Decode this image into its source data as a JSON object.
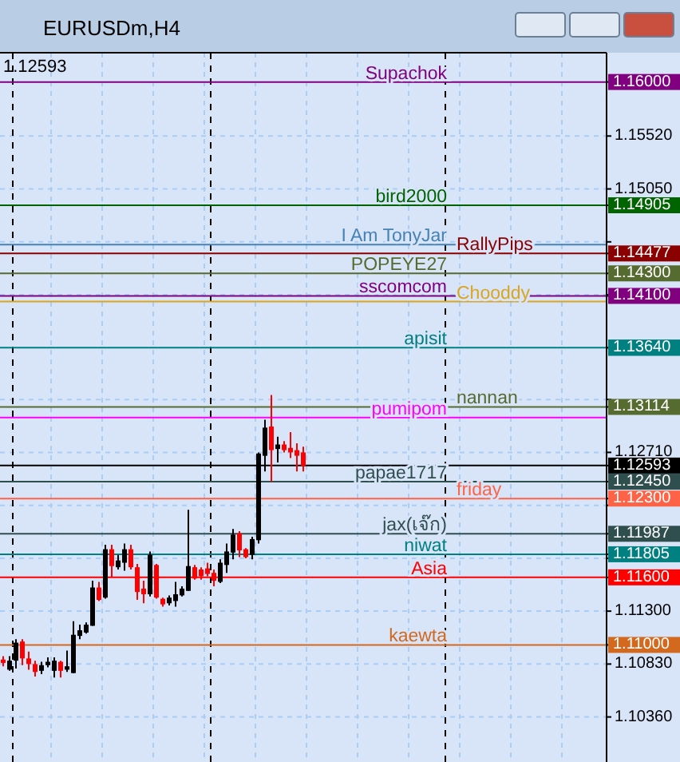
{
  "chart_data": {
    "type": "candlestick",
    "title": "EURUSDm,H4",
    "categories": [
      null,
      null,
      null,
      null,
      null,
      null,
      null,
      null,
      null,
      null,
      null,
      null,
      null,
      null,
      null,
      null,
      null,
      null,
      null,
      null,
      null,
      null,
      null,
      null,
      null,
      null,
      null,
      null,
      null,
      null,
      null,
      null,
      null,
      null,
      null,
      null,
      null,
      null,
      null,
      null,
      null,
      null,
      null,
      null,
      null,
      null,
      null,
      null,
      null,
      null,
      null,
      null,
      null,
      null,
      null,
      null,
      null,
      null,
      null,
      null,
      null,
      null,
      null,
      null,
      null,
      null,
      null,
      null,
      null,
      null,
      null,
      null,
      null,
      null,
      null,
      null,
      null,
      null,
      null,
      null,
      null,
      null,
      null,
      null,
      null,
      null,
      null,
      null,
      null,
      null,
      null,
      null,
      null,
      null,
      null
    ],
    "ohlc": [
      [
        1.1087,
        1.109,
        1.1081,
        1.1084
      ],
      [
        1.1078,
        1.109,
        1.1077,
        1.1086
      ],
      [
        1.1086,
        1.1105,
        1.1079,
        1.1102
      ],
      [
        1.1103,
        1.1105,
        1.1082,
        1.1088
      ],
      [
        1.1088,
        1.1094,
        1.1078,
        1.1083
      ],
      [
        1.1083,
        1.1086,
        1.1072,
        1.1076
      ],
      [
        1.1077,
        1.1085,
        1.1074,
        1.1082
      ],
      [
        1.1082,
        1.1089,
        1.108,
        1.1085
      ],
      [
        1.1077,
        1.1089,
        1.1071,
        1.1086
      ],
      [
        1.1085,
        1.1086,
        1.1071,
        1.1077
      ],
      [
        1.1078,
        1.1095,
        1.1076,
        1.1081
      ],
      [
        1.1075,
        1.1121,
        1.1075,
        1.1109
      ],
      [
        1.1108,
        1.1118,
        1.1105,
        1.1113
      ],
      [
        1.1111,
        1.112,
        1.111,
        1.1118
      ],
      [
        1.1117,
        1.1157,
        1.1117,
        1.1151
      ],
      [
        1.1151,
        1.1156,
        1.1139,
        1.114
      ],
      [
        1.1142,
        1.1189,
        1.1141,
        1.1185
      ],
      [
        1.1185,
        1.1189,
        1.116,
        1.117
      ],
      [
        1.1169,
        1.118,
        1.1167,
        1.1175
      ],
      [
        1.1173,
        1.119,
        1.1166,
        1.1185
      ],
      [
        1.1185,
        1.1189,
        1.1167,
        1.1169
      ],
      [
        1.1169,
        1.1172,
        1.114,
        1.1147
      ],
      [
        1.115,
        1.1157,
        1.1137,
        1.1145
      ],
      [
        1.1145,
        1.1183,
        1.1143,
        1.118
      ],
      [
        1.1171,
        1.1172,
        1.1141,
        1.1142
      ],
      [
        1.1141,
        1.1142,
        1.1134,
        1.1136
      ],
      [
        1.1137,
        1.1144,
        1.1135,
        1.1142
      ],
      [
        1.1139,
        1.1156,
        1.1134,
        1.1145
      ],
      [
        1.1144,
        1.1152,
        1.1143,
        1.115
      ],
      [
        1.1148,
        1.122,
        1.1148,
        1.117
      ],
      [
        1.1169,
        1.1171,
        1.1158,
        1.1159
      ],
      [
        1.1167,
        1.1169,
        1.1158,
        1.1161
      ],
      [
        1.1168,
        1.1173,
        1.1161,
        1.1163
      ],
      [
        1.1164,
        1.1167,
        1.1152,
        1.1157
      ],
      [
        1.1156,
        1.1176,
        1.1155,
        1.1173
      ],
      [
        1.1171,
        1.119,
        1.1164,
        1.1183
      ],
      [
        1.1182,
        1.1203,
        1.1176,
        1.1198
      ],
      [
        1.1199,
        1.1201,
        1.1178,
        1.1184
      ],
      [
        1.1185,
        1.1186,
        1.1177,
        1.1178
      ],
      [
        1.118,
        1.1196,
        1.1176,
        1.1194
      ],
      [
        1.1193,
        1.1271,
        1.119,
        1.127
      ],
      [
        1.1268,
        1.13,
        1.1254,
        1.1293
      ],
      [
        1.1294,
        1.1322,
        1.1245,
        1.1273
      ],
      [
        1.1274,
        1.1285,
        1.1262,
        1.1278
      ],
      [
        1.1278,
        1.1281,
        1.1271,
        1.1273
      ],
      [
        1.1275,
        1.1289,
        1.1266,
        1.1271
      ],
      [
        1.1273,
        1.1279,
        1.1254,
        1.1268
      ],
      [
        1.1271,
        1.1276,
        1.1254,
        1.1259
      ],
      null,
      null,
      null,
      null,
      null,
      null,
      null,
      null,
      null,
      null,
      null,
      null,
      null,
      null,
      null,
      null,
      null,
      null,
      null,
      null,
      null,
      null,
      null,
      null,
      null,
      null,
      null,
      null,
      null,
      null,
      null,
      null,
      null,
      null,
      null,
      null,
      null,
      null,
      null,
      null,
      null,
      null,
      null,
      null,
      null,
      null,
      null
    ],
    "colors": [
      "#ff0000",
      "#000000",
      "#000000",
      "#ff0000",
      "#ff0000",
      "#ff0000",
      "#000000",
      "#000000",
      "#000000",
      "#ff0000",
      "#000000",
      "#000000",
      "#000000",
      "#000000",
      "#000000",
      "#ff0000",
      "#000000",
      "#ff0000",
      "#000000",
      "#000000",
      "#ff0000",
      "#ff0000",
      "#ff0000",
      "#000000",
      "#ff0000",
      "#ff0000",
      "#000000",
      "#000000",
      "#000000",
      "#000000",
      "#ff0000",
      "#ff0000",
      "#ff0000",
      "#ff0000",
      "#000000",
      "#000000",
      "#000000",
      "#ff0000",
      "#ff0000",
      "#000000",
      "#000000",
      "#000000",
      "#ff0000",
      "#000000",
      "#ff0000",
      "#ff0000",
      "#ff0000",
      "#ff0000",
      null,
      null,
      null,
      null,
      null,
      null,
      null,
      null,
      null,
      null,
      null,
      null,
      null,
      null,
      null,
      null,
      null,
      null,
      null,
      null,
      null,
      null,
      null,
      null,
      null,
      null,
      null,
      null,
      null,
      null,
      null,
      null,
      null,
      null,
      null,
      null,
      null,
      null,
      null,
      null,
      null,
      null,
      null,
      null,
      null,
      null,
      null
    ],
    "ylim": [
      1.0996,
      1.1626
    ],
    "yticks": [
      "1.15520",
      "1.15050",
      {
        "value": 1.1458,
        "label": null
      },
      {
        "value": 1.1411,
        "label": null
      },
      {
        "value": 1.1364,
        "label": null
      },
      {
        "value": 1.1318,
        "label": null
      },
      "1.12710",
      {
        "value": 1.1224,
        "label": null
      },
      {
        "value": 1.1177,
        "label": null
      },
      "1.11300",
      "1.10830",
      "1.10360",
      {
        "value": 1.16,
        "label": "1.16000"
      },
      {
        "value": 1.14905,
        "label": "1.14905"
      },
      {
        "value": 1.14477,
        "label": "1.14477"
      },
      {
        "value": 1.143,
        "label": "1.14300"
      },
      {
        "value": 1.141,
        "label": "1.14100"
      },
      {
        "value": 1.1364,
        "label": "1.13640"
      },
      {
        "value": 1.13114,
        "label": "1.13114"
      },
      {
        "value": 1.12593,
        "label": "1.12593"
      },
      {
        "value": 1.1245,
        "label": "1.12450"
      },
      {
        "value": 1.123,
        "label": "1.12300"
      },
      {
        "value": 1.11987,
        "label": "1.11987"
      },
      {
        "value": 1.11805,
        "label": "1.11805"
      },
      {
        "value": 1.116,
        "label": "1.11600"
      },
      {
        "value": 1.11,
        "label": "1.11000"
      }
    ],
    "grid": true,
    "tick_labels": "y",
    "ref_lines": [
      {
        "axis": "y",
        "value": 1.16,
        "label": "Supachok",
        "color": "#800080"
      },
      {
        "axis": "y",
        "value": 1.14905,
        "label": "bird2000",
        "color": "#006400"
      },
      {
        "axis": "y",
        "value": 1.14555,
        "label": "I Am TonyJar",
        "color": "#4682b4"
      },
      {
        "axis": "y",
        "value": 1.14477,
        "label": "RallyPips",
        "color": "#8b0000"
      },
      {
        "axis": "y",
        "value": 1.143,
        "label": "POPEYE27",
        "color": "#556b2f"
      },
      {
        "axis": "y",
        "value": 1.141,
        "label": "sscomcom",
        "color": "#800080"
      },
      {
        "axis": "y",
        "value": 1.1405,
        "label": "Chooddy",
        "color": "#daa520"
      },
      {
        "axis": "y",
        "value": 1.1364,
        "label": "apisit",
        "color": "#008080"
      },
      {
        "axis": "y",
        "value": 1.1302,
        "label": "pumipom",
        "color": "#ff00ff"
      },
      {
        "axis": "y",
        "value": 1.13114,
        "label": "nannan",
        "color": "#556b2f"
      },
      {
        "axis": "y",
        "value": 1.12593,
        "color": "#000000"
      },
      {
        "axis": "y",
        "value": 1.1245,
        "label": "papae1717",
        "color": "#2f4f4f"
      },
      {
        "axis": "y",
        "value": 1.123,
        "label": "friday",
        "color": "#ff6347"
      },
      {
        "axis": "y",
        "value": 1.11987,
        "label": "jax(เจ๊ก)",
        "color": "#2f4f4f"
      },
      {
        "axis": "y",
        "value": 1.11805,
        "label": "niwat",
        "color": "#008080"
      },
      {
        "axis": "y",
        "value": 1.116,
        "label": "Asia",
        "color": "#ff0000"
      },
      {
        "axis": "y",
        "value": 1.11,
        "label": "kaewta",
        "color": "#d2691e"
      }
    ],
    "annotations": [
      "1.12593"
    ]
  }
}
